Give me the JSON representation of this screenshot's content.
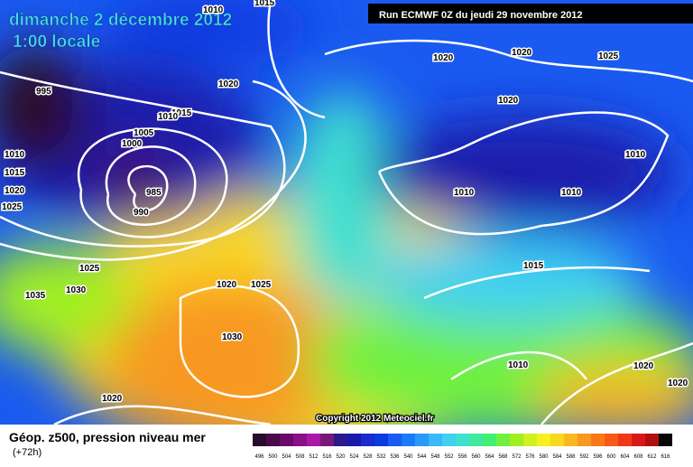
{
  "header": {
    "date": "dimanche 2 décembre 2012",
    "time": "1:00 locale",
    "run": "Run ECMWF 0Z du jeudi 29 novembre 2012"
  },
  "isobar_labels": [
    "1015",
    "1010",
    "995",
    "1020",
    "1015",
    "1010",
    "1005",
    "1000",
    "985",
    "990",
    "1010",
    "1015",
    "1020",
    "1025",
    "1025",
    "1030",
    "1035",
    "1020",
    "1025",
    "1030",
    "1020",
    "1020",
    "1020",
    "1025",
    "1020",
    "1010",
    "1010",
    "1010",
    "1015",
    "1010",
    "1020",
    "1020"
  ],
  "copyright": "Copyright 2012 Meteociel.fr",
  "footer": {
    "title": "Géop. z500, pression niveau mer",
    "lead": "(+72h)"
  },
  "scale": {
    "labels": [
      "496",
      "500",
      "504",
      "508",
      "512",
      "516",
      "520",
      "524",
      "528",
      "532",
      "536",
      "540",
      "544",
      "548",
      "552",
      "556",
      "560",
      "564",
      "568",
      "572",
      "576",
      "580",
      "584",
      "588",
      "592",
      "596",
      "600",
      "604",
      "608",
      "612",
      "616"
    ],
    "colors": [
      "#2a0a2a",
      "#4a0a4a",
      "#6a0a6a",
      "#8a108a",
      "#a818a8",
      "#781878",
      "#2a1a8a",
      "#1a1aaa",
      "#1a2acc",
      "#0a3ae0",
      "#1a5af0",
      "#1a7af8",
      "#2a9af8",
      "#3ab8f8",
      "#40d0f0",
      "#40e0d0",
      "#40e8a0",
      "#40f070",
      "#70f040",
      "#a0f020",
      "#d0f020",
      "#f8f020",
      "#f8d820",
      "#f8b820",
      "#f89820",
      "#f87818",
      "#f85818",
      "#f03818",
      "#d81818",
      "#b01010",
      "#080808"
    ]
  }
}
